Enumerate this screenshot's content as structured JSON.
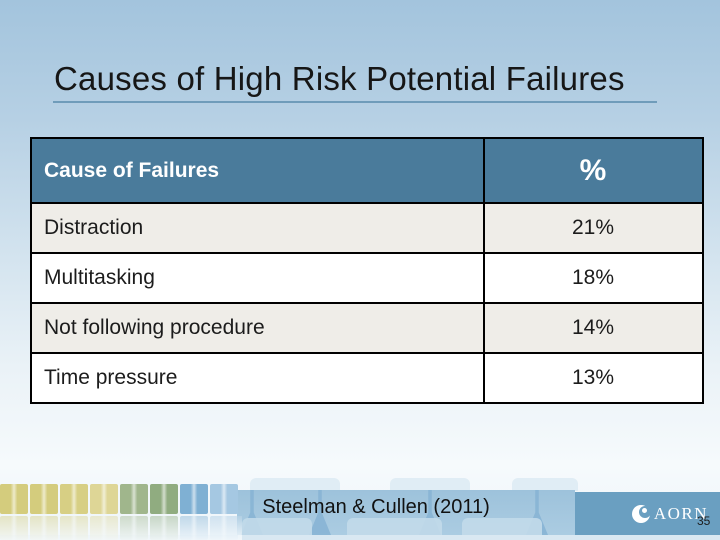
{
  "slide": {
    "title": "Causes of High Risk Potential Failures",
    "citation": "Steelman & Cullen (2011)",
    "page_number": "35",
    "logo_text": "AORN"
  },
  "table": {
    "headers": [
      "Cause of Failures",
      "%"
    ],
    "rows": [
      {
        "cause": "Distraction",
        "pct": "21%"
      },
      {
        "cause": "Multitasking",
        "pct": "18%"
      },
      {
        "cause": "Not following procedure",
        "pct": "14%"
      },
      {
        "cause": "Time pressure",
        "pct": "13%"
      }
    ]
  },
  "chart_data": {
    "type": "table",
    "columns": [
      "Cause of Failures",
      "%"
    ],
    "rows": [
      [
        "Distraction",
        "21%"
      ],
      [
        "Multitasking",
        "18%"
      ],
      [
        "Not following procedure",
        "14%"
      ],
      [
        "Time pressure",
        "13%"
      ]
    ],
    "title": "Causes of High Risk Potential Failures"
  },
  "colors": {
    "table_header_bg": "#4a7b9b",
    "row_alt_bg": "#efede8",
    "row_bg": "#ffffff",
    "table_border": "#000000",
    "logo_band_bg": "#6a9fc1",
    "title_underline": "#6f9cba"
  },
  "decor": {
    "square_colors": [
      "#d4cc7d",
      "#d4cc7d",
      "#d7cf84",
      "#ded696",
      "#a0b68c",
      "#90ac80",
      "#7fb0d3",
      "#a5c8e2"
    ]
  }
}
